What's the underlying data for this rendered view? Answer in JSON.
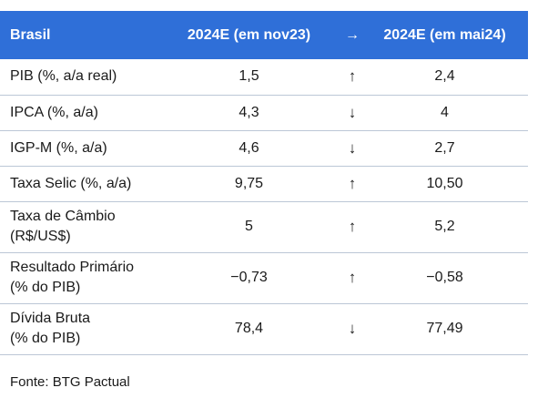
{
  "table": {
    "headers": [
      "Brasil",
      "2024E (em nov23)",
      "→",
      "2024E (em mai24)"
    ],
    "rows": [
      {
        "label_lines": [
          "PIB (%, a/a real)"
        ],
        "prev": "1,5",
        "arrow": "↑",
        "next": "2,4"
      },
      {
        "label_lines": [
          "IPCA (%, a/a)"
        ],
        "prev": "4,3",
        "arrow": "↓",
        "next": "4"
      },
      {
        "label_lines": [
          "IGP-M (%, a/a)"
        ],
        "prev": "4,6",
        "arrow": "↓",
        "next": "2,7"
      },
      {
        "label_lines": [
          "Taxa Selic (%, a/a)"
        ],
        "prev": "9,75",
        "arrow": "↑",
        "next": "10,50"
      },
      {
        "label_lines": [
          "Taxa de Câmbio",
          "(R$/US$)"
        ],
        "prev": "5",
        "arrow": "↑",
        "next": "5,2"
      },
      {
        "label_lines": [
          "Resultado Primário",
          "(% do PIB)"
        ],
        "prev": "−0,73",
        "arrow": "↑",
        "next": "−0,58"
      },
      {
        "label_lines": [
          "Dívida Bruta",
          "(% do PIB)"
        ],
        "prev": "78,4",
        "arrow": "↓",
        "next": "77,49"
      }
    ]
  },
  "source": "Fonte: BTG Pactual",
  "colors": {
    "header_bg": "#2f6fd8",
    "header_text": "#ffffff",
    "row_divider": "#bcc7d6"
  }
}
